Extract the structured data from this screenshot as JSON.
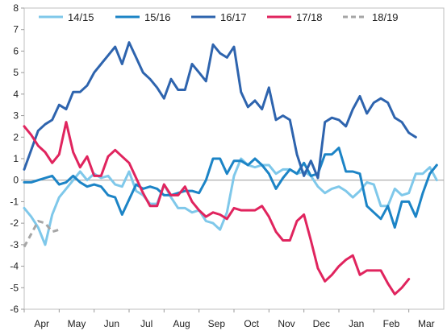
{
  "chart_data": {
    "type": "line",
    "title": "",
    "xlabel": "",
    "ylabel": "",
    "ylim": [
      -6,
      8
    ],
    "y_ticks": [
      -6,
      -5,
      -4,
      -3,
      -2,
      -1,
      0,
      1,
      2,
      3,
      4,
      5,
      6,
      7,
      8
    ],
    "x_ticks": [
      "Apr",
      "May",
      "Jun",
      "Jul",
      "Aug",
      "Sep",
      "Oct",
      "Nov",
      "Dec",
      "Jan",
      "Feb",
      "Mar"
    ],
    "grid": "none",
    "legend_position": "top",
    "series": [
      {
        "name": "14/15",
        "color": "#7FC8EA",
        "style": "solid",
        "values": [
          -1.3,
          -1.7,
          -2.2,
          -3.0,
          -1.6,
          -0.8,
          -0.4,
          0.0,
          0.4,
          0.0,
          0.3,
          0.1,
          0.2,
          -0.2,
          -0.3,
          0.4,
          -0.5,
          -0.7,
          -1.1,
          -1.1,
          -0.2,
          -0.8,
          -1.3,
          -1.3,
          -1.5,
          -1.4,
          -1.9,
          -2.0,
          -2.3,
          -1.5,
          0.2,
          1.0,
          0.7,
          0.6,
          0.7,
          0.7,
          0.3,
          0.5,
          0.5,
          0.3,
          0.4,
          0.2,
          -0.3,
          -0.6,
          -0.4,
          -0.3,
          -0.5,
          -0.8,
          -0.5,
          -0.1,
          -0.2,
          -1.2,
          -1.2,
          -0.4,
          -0.7,
          -0.6,
          0.3,
          0.3,
          0.6,
          0.0
        ]
      },
      {
        "name": "15/16",
        "color": "#1C84C6",
        "style": "solid",
        "values": [
          -0.1,
          -0.1,
          0.0,
          0.1,
          0.2,
          -0.2,
          -0.1,
          0.2,
          -0.1,
          -0.3,
          -0.2,
          -0.3,
          -0.7,
          -0.8,
          -1.6,
          -0.9,
          -0.2,
          -0.4,
          -0.3,
          -0.4,
          -0.7,
          -0.7,
          -0.6,
          -0.5,
          -0.5,
          -0.6,
          0.0,
          1.0,
          1.0,
          0.3,
          0.9,
          0.9,
          0.7,
          1.0,
          0.7,
          0.3,
          -0.4,
          0.1,
          0.5,
          0.3,
          0.8,
          0.2,
          0.3,
          1.2,
          1.2,
          1.5,
          0.4,
          0.4,
          0.3,
          -1.2,
          -1.5,
          -1.8,
          -1.2,
          -2.2,
          -1.0,
          -1.0,
          -1.7,
          -0.6,
          0.3,
          0.7
        ]
      },
      {
        "name": "16/17",
        "color": "#2E64AE",
        "style": "solid",
        "values": [
          0.5,
          1.4,
          2.3,
          2.6,
          2.8,
          3.5,
          3.3,
          4.1,
          4.1,
          4.4,
          5.0,
          5.4,
          5.8,
          6.2,
          5.4,
          6.4,
          5.7,
          5.0,
          4.7,
          4.3,
          3.8,
          4.7,
          4.2,
          4.2,
          5.4,
          5.0,
          4.6,
          6.3,
          5.9,
          5.7,
          6.2,
          4.1,
          3.4,
          3.7,
          3.3,
          4.3,
          2.8,
          3.0,
          2.8,
          1.2,
          0.2,
          0.9,
          0.1,
          2.7,
          2.9,
          2.8,
          2.5,
          3.3,
          3.9,
          3.1,
          3.6,
          3.8,
          3.6,
          2.9,
          2.7,
          2.2,
          2.0
        ]
      },
      {
        "name": "17/18",
        "color": "#E0245E",
        "style": "solid",
        "values": [
          2.5,
          2.1,
          1.6,
          1.3,
          0.8,
          1.2,
          2.7,
          1.3,
          0.6,
          1.1,
          0.2,
          0.2,
          1.1,
          1.4,
          1.1,
          0.8,
          0.1,
          -0.6,
          -1.2,
          -1.2,
          -0.2,
          -0.7,
          -0.7,
          -0.3,
          -1.0,
          -1.4,
          -1.7,
          -1.5,
          -1.6,
          -1.8,
          -1.3,
          -1.4,
          -1.4,
          -1.4,
          -1.2,
          -1.7,
          -2.4,
          -2.8,
          -2.8,
          -1.9,
          -1.6,
          -2.8,
          -4.1,
          -4.7,
          -4.4,
          -4.0,
          -3.7,
          -3.5,
          -4.4,
          -4.2,
          -4.2,
          -4.2,
          -4.8,
          -5.3,
          -5.0,
          -4.6
        ]
      },
      {
        "name": "18/19",
        "color": "#A6A6A6",
        "style": "dashed",
        "values": [
          -3.1,
          -2.5,
          -1.9,
          -2.0,
          -2.4,
          -2.3
        ]
      }
    ]
  }
}
